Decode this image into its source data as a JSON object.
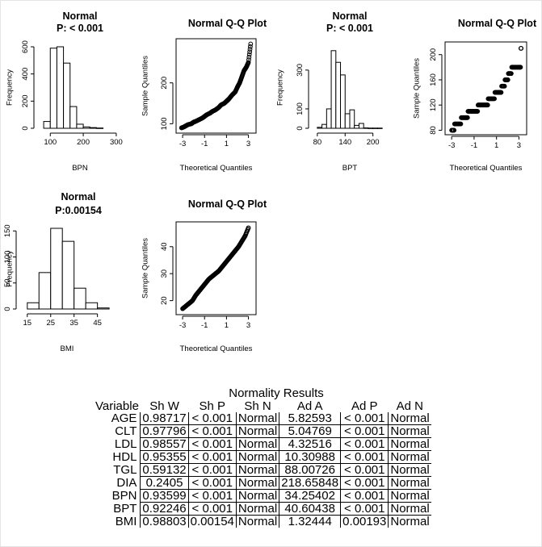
{
  "chart_data": [
    {
      "type": "bar",
      "panel": "hist-bpn",
      "title": "Normal",
      "subtitle": "P: < 0.001",
      "xlabel": "BPN",
      "ylabel": "Frequency",
      "bin_edges": [
        80,
        100,
        120,
        140,
        160,
        180,
        200,
        220,
        240,
        260
      ],
      "values": [
        50,
        590,
        600,
        480,
        160,
        30,
        10,
        5,
        2
      ],
      "xlim": [
        70,
        310
      ],
      "ylim": [
        0,
        600
      ],
      "xticks": [
        100,
        200,
        300
      ],
      "yticks": [
        0,
        200,
        400,
        600
      ]
    },
    {
      "type": "scatter",
      "panel": "qq-bpn",
      "title": "Normal Q-Q Plot",
      "xlabel": "Theoretical Quantiles",
      "ylabel": "Sample Quantiles",
      "shape": "normal",
      "xlim": [
        -3.3,
        3.4
      ],
      "ylim": [
        85,
        300
      ],
      "xticks": [
        -3,
        -1,
        1,
        3
      ],
      "yticks": [
        100,
        200
      ],
      "x": [
        -3.1,
        -2.9,
        -2.7,
        -2.5,
        -2.2,
        -2.0,
        -1.8,
        -1.5,
        -1.2,
        -1.0,
        -0.8,
        -0.5,
        -0.3,
        0.0,
        0.3,
        0.5,
        0.8,
        1.0,
        1.2,
        1.5,
        1.8,
        2.0,
        2.2,
        2.4,
        2.6,
        2.8,
        3.0,
        3.2
      ],
      "y": [
        90,
        92,
        95,
        98,
        100,
        104,
        106,
        110,
        114,
        118,
        122,
        126,
        130,
        134,
        140,
        146,
        150,
        155,
        160,
        170,
        178,
        190,
        200,
        215,
        230,
        238,
        250,
        295
      ]
    },
    {
      "type": "bar",
      "panel": "hist-bpt",
      "title": "Normal",
      "subtitle": "P: < 0.001",
      "xlabel": "BPT",
      "ylabel": "Frequency",
      "bin_edges": [
        80,
        90,
        100,
        110,
        120,
        130,
        140,
        150,
        160,
        170,
        180,
        190,
        200,
        210,
        220
      ],
      "values": [
        5,
        20,
        100,
        400,
        340,
        275,
        75,
        95,
        15,
        25,
        2,
        1,
        1,
        1
      ],
      "xlim": [
        75,
        225
      ],
      "ylim": [
        0,
        420
      ],
      "xticks": [
        80,
        140,
        200
      ],
      "yticks": [
        0,
        100,
        300
      ]
    },
    {
      "type": "scatter",
      "panel": "qq-bpt",
      "title": "Normal Q-Q Plot",
      "xlabel": "Theoretical Quantiles",
      "ylabel": "Sample Quantiles",
      "shape": "stepped",
      "xlim": [
        -3.3,
        3.4
      ],
      "ylim": [
        78,
        215
      ],
      "xticks": [
        -3,
        -1,
        1,
        3
      ],
      "yticks": [
        80,
        120,
        160,
        200
      ],
      "x": [
        -3.0,
        -2.7,
        -2.4,
        -2.1,
        -1.8,
        -1.5,
        -1.2,
        -0.9,
        -0.6,
        -0.3,
        0.0,
        0.3,
        0.6,
        0.9,
        1.2,
        1.5,
        1.8,
        2.1,
        2.4,
        2.7,
        3.0,
        3.2
      ],
      "y": [
        80,
        90,
        90,
        100,
        100,
        110,
        110,
        110,
        120,
        120,
        120,
        130,
        130,
        140,
        140,
        150,
        160,
        170,
        180,
        180,
        180,
        210
      ]
    },
    {
      "type": "bar",
      "panel": "hist-bmi",
      "title": "Normal",
      "subtitle": "P:0.00154",
      "xlabel": "BMI",
      "ylabel": "Frequency",
      "bin_edges": [
        15,
        20,
        25,
        30,
        35,
        40,
        45,
        50
      ],
      "values": [
        12,
        70,
        155,
        130,
        40,
        12,
        2
      ],
      "xlim": [
        13,
        51
      ],
      "ylim": [
        0,
        155
      ],
      "xticks": [
        15,
        25,
        35,
        45
      ],
      "yticks": [
        0,
        50,
        100,
        150
      ]
    },
    {
      "type": "scatter",
      "panel": "qq-bmi",
      "title": "Normal Q-Q Plot",
      "xlabel": "Theoretical Quantiles",
      "ylabel": "Sample Quantiles",
      "shape": "normal",
      "xlim": [
        -3.3,
        3.4
      ],
      "ylim": [
        16,
        48
      ],
      "xticks": [
        -3,
        -1,
        1,
        3
      ],
      "yticks": [
        20,
        30,
        40
      ],
      "x": [
        -3.0,
        -2.7,
        -2.4,
        -2.1,
        -1.8,
        -1.5,
        -1.2,
        -0.9,
        -0.6,
        -0.3,
        0.0,
        0.3,
        0.6,
        0.9,
        1.2,
        1.5,
        1.8,
        2.1,
        2.4,
        2.7,
        3.0
      ],
      "y": [
        17,
        18,
        19,
        20,
        22,
        23.5,
        25,
        26.5,
        28,
        29,
        30,
        31,
        32.5,
        34,
        35.5,
        37,
        38.5,
        40,
        42,
        44,
        47
      ]
    },
    {
      "type": "table",
      "title": "Normality Results",
      "columns": [
        "Variable",
        "Sh W",
        "Sh P",
        "Sh N",
        "Ad A",
        "Ad P",
        "Ad N"
      ],
      "rows": [
        [
          "AGE",
          "0.98717",
          "< 0.001",
          "Normal",
          "5.82593",
          "< 0.001",
          "Normal"
        ],
        [
          "CLT",
          "0.97796",
          "< 0.001",
          "Normal",
          "5.04769",
          "< 0.001",
          "Normal"
        ],
        [
          "LDL",
          "0.98557",
          "< 0.001",
          "Normal",
          "4.32516",
          "< 0.001",
          "Normal"
        ],
        [
          "HDL",
          "0.95355",
          "< 0.001",
          "Normal",
          "10.30988",
          "< 0.001",
          "Normal"
        ],
        [
          "TGL",
          "0.59132",
          "< 0.001",
          "Normal",
          "88.00726",
          "< 0.001",
          "Normal"
        ],
        [
          "DIA",
          "0.2405",
          "< 0.001",
          "Normal",
          "218.65848",
          "< 0.001",
          "Normal"
        ],
        [
          "BPN",
          "0.93599",
          "< 0.001",
          "Normal",
          "34.25402",
          "< 0.001",
          "Normal"
        ],
        [
          "BPT",
          "0.92246",
          "< 0.001",
          "Normal",
          "40.60438",
          "< 0.001",
          "Normal"
        ],
        [
          "BMI",
          "0.98803",
          "0.00154",
          "Normal",
          "1.32444",
          "0.00193",
          "Normal"
        ]
      ]
    }
  ]
}
